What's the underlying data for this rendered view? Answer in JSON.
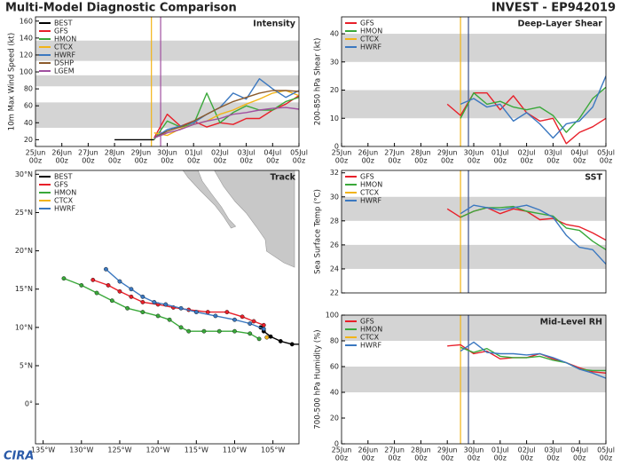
{
  "header": {
    "title": "Multi-Model Diagnostic Comparison",
    "storm": "INVEST - EP942019"
  },
  "logo": "CIRA",
  "chart_data": [
    {
      "type": "line",
      "title": "Intensity",
      "y_label": "10m Max Wind Speed (kt)",
      "xlim": [
        0,
        10
      ],
      "ylim": [
        12,
        165
      ],
      "yticks": [
        20,
        40,
        60,
        80,
        100,
        120,
        140,
        160
      ],
      "xticks": [
        {
          "value": 0,
          "label": "25Jun",
          "sub": "00z"
        },
        {
          "value": 1,
          "label": "26Jun",
          "sub": "00z"
        },
        {
          "value": 2,
          "label": "27Jun",
          "sub": "00z"
        },
        {
          "value": 3,
          "label": "28Jun",
          "sub": "00z"
        },
        {
          "value": 4,
          "label": "29Jun",
          "sub": "00z"
        },
        {
          "value": 5,
          "label": "30Jun",
          "sub": "00z"
        },
        {
          "value": 6,
          "label": "01Jul",
          "sub": "00z"
        },
        {
          "value": 7,
          "label": "02Jul",
          "sub": "00z"
        },
        {
          "value": 8,
          "label": "03Jul",
          "sub": "00z"
        },
        {
          "value": 9,
          "label": "04Jul",
          "sub": "00z"
        },
        {
          "value": 10,
          "label": "05Jul",
          "sub": "00z"
        }
      ],
      "bands": [
        [
          34,
          64
        ],
        [
          83,
          96
        ],
        [
          113,
          137
        ]
      ],
      "vlines": [
        {
          "x": 4.4,
          "color": "#f2b418"
        },
        {
          "x": 4.75,
          "color": "#a050a0"
        }
      ],
      "series": [
        {
          "name": "BEST",
          "color": "#000000",
          "x": [
            3,
            3.5,
            4,
            4.5
          ],
          "values": [
            20,
            20,
            20,
            20
          ]
        },
        {
          "name": "GFS",
          "color": "#e8202a",
          "x": [
            4.5,
            5,
            5.5,
            6,
            6.5,
            7,
            7.5,
            8,
            8.5,
            9,
            9.5,
            10
          ],
          "values": [
            22,
            50,
            36,
            42,
            35,
            40,
            38,
            45,
            45,
            55,
            62,
            72
          ]
        },
        {
          "name": "HMON",
          "color": "#3aa83a",
          "x": [
            4.5,
            5,
            5.5,
            6,
            6.5,
            7,
            7.5,
            8,
            8.5,
            9,
            9.5,
            10
          ],
          "values": [
            20,
            42,
            35,
            38,
            75,
            40,
            52,
            60,
            55,
            55,
            65,
            70
          ]
        },
        {
          "name": "CTCX",
          "color": "#f2b418",
          "x": [
            4.5,
            5,
            5.5,
            6,
            6.5,
            7,
            7.5,
            8,
            8.5,
            9,
            9.5,
            10
          ],
          "values": [
            28,
            25,
            33,
            38,
            42,
            50,
            55,
            62,
            68,
            75,
            78,
            72
          ]
        },
        {
          "name": "HWRF",
          "color": "#3b78c0",
          "x": [
            4.5,
            5,
            5.5,
            6,
            6.5,
            7,
            7.5,
            8,
            8.5,
            9,
            9.5,
            10
          ],
          "values": [
            22,
            32,
            36,
            40,
            50,
            58,
            75,
            68,
            92,
            80,
            70,
            78
          ]
        },
        {
          "name": "DSHP",
          "color": "#8b5a2b",
          "x": [
            4.5,
            5,
            5.5,
            6,
            6.5,
            7,
            7.5,
            8,
            8.5,
            9,
            9.5,
            10
          ],
          "values": [
            22,
            30,
            35,
            42,
            50,
            58,
            65,
            70,
            75,
            78,
            78,
            77
          ]
        },
        {
          "name": "LGEM",
          "color": "#a050a0",
          "x": [
            4.5,
            5,
            5.5,
            6,
            6.5,
            7,
            7.5,
            8,
            8.5,
            9,
            9.5,
            10
          ],
          "values": [
            22,
            28,
            32,
            38,
            42,
            45,
            50,
            52,
            55,
            57,
            58,
            56
          ]
        }
      ]
    },
    {
      "type": "line",
      "title": "Track",
      "markers": true,
      "xlim": [
        -136,
        -101.6
      ],
      "ylim": [
        -5.2,
        30.5
      ],
      "xticks": [
        {
          "value": -135,
          "label": "135°W"
        },
        {
          "value": -130,
          "label": "130°W"
        },
        {
          "value": -125,
          "label": "125°W"
        },
        {
          "value": -120,
          "label": "120°W"
        },
        {
          "value": -115,
          "label": "115°W"
        },
        {
          "value": -110,
          "label": "110°W"
        },
        {
          "value": -105,
          "label": "105°W"
        }
      ],
      "yticks": [
        {
          "value": 0,
          "label": "0°"
        },
        {
          "value": 5,
          "label": "5°N"
        },
        {
          "value": 10,
          "label": "10°N"
        },
        {
          "value": 15,
          "label": "15°N"
        },
        {
          "value": 20,
          "label": "20°N"
        },
        {
          "value": 25,
          "label": "25°N"
        },
        {
          "value": 30,
          "label": "30°N"
        }
      ],
      "series": [
        {
          "name": "BEST",
          "color": "#000000",
          "x": [
            -101.2,
            -102.5,
            -104,
            -105.3,
            -106.2,
            -106.6
          ],
          "values": [
            7.8,
            7.8,
            8.2,
            8.8,
            9.5,
            10.0
          ]
        },
        {
          "name": "GFS",
          "color": "#e8202a",
          "x": [
            -106.2,
            -107.5,
            -109,
            -111,
            -113.5,
            -116,
            -118,
            -120,
            -122,
            -123.5,
            -125,
            -126.5,
            -128.5
          ],
          "values": [
            10.3,
            10.8,
            11.4,
            12,
            12,
            12.3,
            12.6,
            13,
            13.3,
            14,
            14.7,
            15.5,
            16.2
          ]
        },
        {
          "name": "HMON",
          "color": "#3aa83a",
          "x": [
            -106.8,
            -108,
            -110,
            -112,
            -114,
            -116,
            -117,
            -118.5,
            -120,
            -122,
            -124,
            -126,
            -128,
            -130,
            -132.3
          ],
          "values": [
            8.5,
            9.2,
            9.5,
            9.5,
            9.5,
            9.5,
            10,
            11,
            11.5,
            12,
            12.5,
            13.5,
            14.5,
            15.5,
            16.4
          ]
        },
        {
          "name": "CTCX",
          "color": "#f2b418",
          "x": [
            -105.8
          ],
          "values": [
            8.7
          ]
        },
        {
          "name": "HWRF",
          "color": "#3b78c0",
          "x": [
            -106.2,
            -108,
            -110,
            -112.5,
            -115,
            -117,
            -119,
            -120.5,
            -122,
            -123.5,
            -125,
            -126.8
          ],
          "values": [
            9.8,
            10.5,
            11,
            11.5,
            12,
            12.5,
            13,
            13.3,
            14,
            15,
            16,
            17.6
          ]
        }
      ]
    },
    {
      "type": "line",
      "title": "Deep-Layer Shear",
      "y_label": "200-850 hPa Shear (kt)",
      "xlim": [
        0,
        10
      ],
      "ylim": [
        0,
        46
      ],
      "yticks": [
        0,
        10,
        20,
        30,
        40
      ],
      "xticks": [
        {
          "value": 0,
          "label": "25Jun",
          "sub": "00z"
        },
        {
          "value": 1,
          "label": "26Jun",
          "sub": "00z"
        },
        {
          "value": 2,
          "label": "27Jun",
          "sub": "00z"
        },
        {
          "value": 3,
          "label": "28Jun",
          "sub": "00z"
        },
        {
          "value": 4,
          "label": "29Jun",
          "sub": "00z"
        },
        {
          "value": 5,
          "label": "30Jun",
          "sub": "00z"
        },
        {
          "value": 6,
          "label": "01Jul",
          "sub": "00z"
        },
        {
          "value": 7,
          "label": "02Jul",
          "sub": "00z"
        },
        {
          "value": 8,
          "label": "03Jul",
          "sub": "00z"
        },
        {
          "value": 9,
          "label": "04Jul",
          "sub": "00z"
        },
        {
          "value": 10,
          "label": "05Jul",
          "sub": "00z"
        }
      ],
      "bands": [
        [
          10,
          20
        ],
        [
          30,
          40
        ]
      ],
      "vlines": [
        {
          "x": 4.5,
          "color": "#f2b418"
        },
        {
          "x": 4.8,
          "color": "#3a4f8a"
        }
      ],
      "series": [
        {
          "name": "GFS",
          "color": "#e8202a",
          "x": [
            4,
            4.5,
            5,
            5.5,
            6,
            6.5,
            7,
            7.5,
            8,
            8.5,
            9,
            9.5,
            10
          ],
          "values": [
            15,
            11,
            19,
            19,
            13,
            18,
            12,
            9,
            10,
            1,
            5,
            7,
            10
          ]
        },
        {
          "name": "HMON",
          "color": "#3aa83a",
          "x": [
            4.5,
            5,
            5.5,
            6,
            6.5,
            7,
            7.5,
            8,
            8.5,
            9,
            9.5,
            10
          ],
          "values": [
            10,
            19,
            15,
            16,
            14,
            13,
            14,
            11,
            5,
            10,
            17,
            21
          ]
        },
        {
          "name": "CTCX",
          "color": "#f2b418",
          "x": [],
          "values": []
        },
        {
          "name": "HWRF",
          "color": "#3b78c0",
          "x": [
            4.5,
            5,
            5.5,
            6,
            6.5,
            7,
            7.5,
            8,
            8.5,
            9,
            9.5,
            10
          ],
          "values": [
            15,
            17,
            14,
            15,
            9,
            12,
            8,
            3,
            8,
            9,
            14,
            25
          ]
        }
      ]
    },
    {
      "type": "line",
      "title": "SST",
      "y_label": "Sea Surface Temp (°C)",
      "xlim": [
        0,
        10
      ],
      "ylim": [
        22,
        32.2
      ],
      "yticks": [
        22,
        24,
        26,
        28,
        30,
        32
      ],
      "bands": [
        [
          24,
          26
        ],
        [
          28,
          30
        ]
      ],
      "vlines": [
        {
          "x": 4.5,
          "color": "#f2b418"
        },
        {
          "x": 4.8,
          "color": "#3a4f8a"
        }
      ],
      "series": [
        {
          "name": "GFS",
          "color": "#e8202a",
          "x": [
            4,
            4.5,
            5,
            5.5,
            6,
            6.5,
            7,
            7.5,
            8,
            8.5,
            9,
            9.5,
            10
          ],
          "values": [
            29.0,
            28.3,
            28.8,
            29.1,
            28.6,
            29.0,
            28.8,
            28.1,
            28.2,
            27.7,
            27.5,
            27.0,
            26.4
          ]
        },
        {
          "name": "HMON",
          "color": "#3aa83a",
          "x": [
            4.5,
            5,
            5.5,
            6,
            6.5,
            7,
            7.5,
            8,
            8.5,
            9,
            9.5,
            10
          ],
          "values": [
            28.3,
            28.8,
            29.1,
            29.1,
            29.2,
            28.8,
            28.6,
            28.4,
            27.4,
            27.2,
            26.3,
            25.6
          ]
        },
        {
          "name": "CTCX",
          "color": "#f2b418",
          "x": [],
          "values": []
        },
        {
          "name": "HWRF",
          "color": "#3b78c0",
          "x": [
            4.5,
            5,
            5.5,
            6,
            6.5,
            7,
            7.5,
            8,
            8.5,
            9,
            9.5,
            10
          ],
          "values": [
            28.6,
            29.3,
            29.1,
            28.9,
            29.1,
            29.3,
            28.9,
            28.3,
            26.8,
            25.8,
            25.6,
            24.4
          ]
        }
      ]
    },
    {
      "type": "line",
      "title": "Mid-Level RH",
      "y_label": "700-500 hPa Humidity (%)",
      "xlim": [
        0,
        10
      ],
      "ylim": [
        0,
        100
      ],
      "yticks": [
        0,
        20,
        40,
        60,
        80,
        100
      ],
      "xticks": [
        {
          "value": 0,
          "label": "25Jun",
          "sub": "00z"
        },
        {
          "value": 1,
          "label": "26Jun",
          "sub": "00z"
        },
        {
          "value": 2,
          "label": "27Jun",
          "sub": "00z"
        },
        {
          "value": 3,
          "label": "28Jun",
          "sub": "00z"
        },
        {
          "value": 4,
          "label": "29Jun",
          "sub": "00z"
        },
        {
          "value": 5,
          "label": "30Jun",
          "sub": "00z"
        },
        {
          "value": 6,
          "label": "01Jul",
          "sub": "00z"
        },
        {
          "value": 7,
          "label": "02Jul",
          "sub": "00z"
        },
        {
          "value": 8,
          "label": "03Jul",
          "sub": "00z"
        },
        {
          "value": 9,
          "label": "04Jul",
          "sub": "00z"
        },
        {
          "value": 10,
          "label": "05Jul",
          "sub": "00z"
        }
      ],
      "bands": [
        [
          40,
          60
        ],
        [
          80,
          100
        ]
      ],
      "vlines": [
        {
          "x": 4.5,
          "color": "#f2b418"
        },
        {
          "x": 4.8,
          "color": "#3a4f8a"
        }
      ],
      "series": [
        {
          "name": "GFS",
          "color": "#e8202a",
          "x": [
            4,
            4.5,
            5,
            5.5,
            6,
            6.5,
            7,
            7.5,
            8,
            8.5,
            9,
            9.5,
            10
          ],
          "values": [
            76,
            77,
            70,
            72,
            66,
            67,
            67,
            70,
            66,
            63,
            59,
            56,
            55
          ]
        },
        {
          "name": "HMON",
          "color": "#3aa83a",
          "x": [
            4.5,
            5,
            5.5,
            6,
            6.5,
            7,
            7.5,
            8,
            8.5,
            9,
            9.5,
            10
          ],
          "values": [
            75,
            71,
            74,
            68,
            67,
            67,
            68,
            65,
            63,
            58,
            57,
            57
          ]
        },
        {
          "name": "CTCX",
          "color": "#f2b418",
          "x": [],
          "values": []
        },
        {
          "name": "HWRF",
          "color": "#3b78c0",
          "x": [
            4.5,
            5,
            5.5,
            6,
            6.5,
            7,
            7.5,
            8,
            8.5,
            9,
            9.5,
            10
          ],
          "values": [
            72,
            79,
            71,
            70,
            70,
            69,
            70,
            67,
            63,
            58,
            55,
            51
          ]
        }
      ]
    }
  ]
}
